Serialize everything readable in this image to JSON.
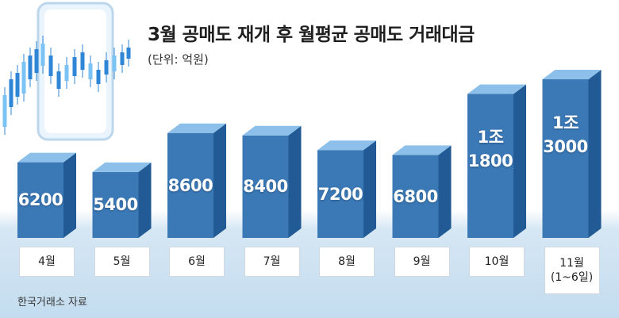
{
  "header": {
    "title": "3월 공매도 재개 후 월평균 공매도 거래대금",
    "unit": "(단위: 억원)"
  },
  "footer": {
    "source": "한국거래소 자료"
  },
  "colors": {
    "bar_front": "#3a78b6",
    "bar_side": "#215a95",
    "bar_top": "#8cc0ea",
    "floor": "#c3dcef"
  },
  "chart_data": {
    "type": "bar",
    "title": "3월 공매도 재개 후 월평균 공매도 거래대금",
    "unit": "억원",
    "categories": [
      "4월",
      "5월",
      "6월",
      "7월",
      "8월",
      "9월",
      "10월",
      "11월 (1~6일)"
    ],
    "category_lines": [
      [
        "4월"
      ],
      [
        "5월"
      ],
      [
        "6월"
      ],
      [
        "7월"
      ],
      [
        "8월"
      ],
      [
        "9월"
      ],
      [
        "10월"
      ],
      [
        "11월",
        "(1~6일)"
      ]
    ],
    "values": [
      6200,
      5400,
      8600,
      8400,
      7200,
      6800,
      11800,
      13000
    ],
    "value_labels": [
      [
        "6200"
      ],
      [
        "5400"
      ],
      [
        "8600"
      ],
      [
        "8400"
      ],
      [
        "7200"
      ],
      [
        "6800"
      ],
      [
        "1조",
        "1800"
      ],
      [
        "1조",
        "3000"
      ]
    ]
  }
}
